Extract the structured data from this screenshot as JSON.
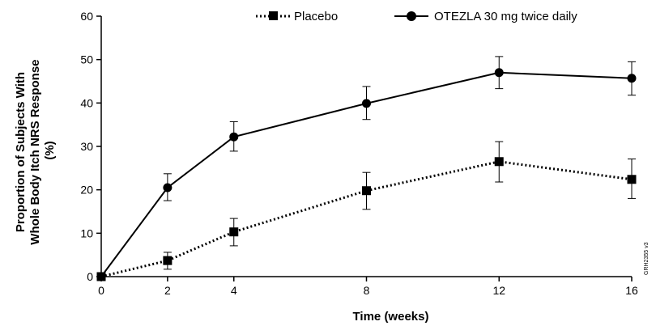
{
  "chart_data": {
    "type": "line",
    "title": "",
    "xlabel": "Time (weeks)",
    "ylabel_lines": [
      "Proportion of Subjects With",
      "Whole Body Itch NRS Response",
      "(%)"
    ],
    "x": [
      0,
      2,
      4,
      8,
      12,
      16
    ],
    "x_ticks": [
      "0",
      "2",
      "4",
      "8",
      "12",
      "16"
    ],
    "xlim": [
      0,
      16
    ],
    "y_ticks": [
      "0",
      "10",
      "20",
      "30",
      "40",
      "50",
      "60"
    ],
    "ylim": [
      0,
      60
    ],
    "grid": false,
    "legend_position": "top",
    "series": [
      {
        "name": "Placebo",
        "line_style": "dotted",
        "marker": "square",
        "values": [
          0,
          3.7,
          10.3,
          19.8,
          26.5,
          22.4
        ],
        "error_low": [
          0,
          1.7,
          7.1,
          15.5,
          21.8,
          18.0
        ],
        "error_high": [
          0,
          5.6,
          13.4,
          24.0,
          31.1,
          27.1
        ]
      },
      {
        "name": "OTEZLA 30 mg twice daily",
        "line_style": "solid",
        "marker": "circle",
        "values": [
          0,
          20.5,
          32.2,
          39.9,
          47.0,
          45.7
        ],
        "error_low": [
          0,
          17.5,
          28.9,
          36.2,
          43.3,
          41.8
        ],
        "error_high": [
          0,
          23.7,
          35.7,
          43.8,
          50.7,
          49.5
        ]
      }
    ],
    "side_code": "GRH2355 v3"
  }
}
